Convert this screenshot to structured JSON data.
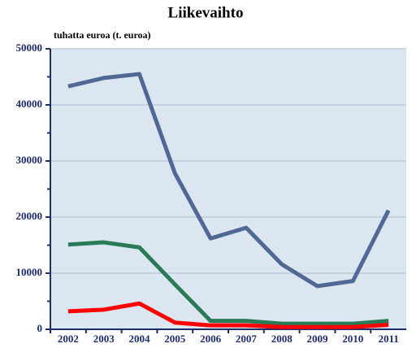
{
  "chart_data": {
    "type": "line",
    "title": "Liikevaihto",
    "subtitle": "tuhatta euroa (t. euroa)",
    "categories": [
      "2002",
      "2003",
      "2004",
      "2005",
      "2006",
      "2007",
      "2008",
      "2009",
      "2010",
      "2011"
    ],
    "series": [
      {
        "color": "#4f6894",
        "values": [
          43300,
          44800,
          45500,
          27800,
          16200,
          18100,
          11600,
          7700,
          8600,
          21200
        ]
      },
      {
        "color": "#2a7a58",
        "values": [
          15100,
          15500,
          14600,
          8000,
          1500,
          1500,
          1000,
          1000,
          1000,
          1500
        ]
      },
      {
        "color": "#ff0000",
        "values": [
          3200,
          3500,
          4600,
          1200,
          700,
          700,
          400,
          400,
          400,
          800
        ]
      }
    ],
    "ylim": [
      0,
      50000
    ],
    "yticks": [
      0,
      10000,
      20000,
      30000,
      40000,
      50000
    ],
    "yminorticks": [
      5000,
      15000,
      25000,
      35000,
      45000
    ],
    "grid": true
  }
}
